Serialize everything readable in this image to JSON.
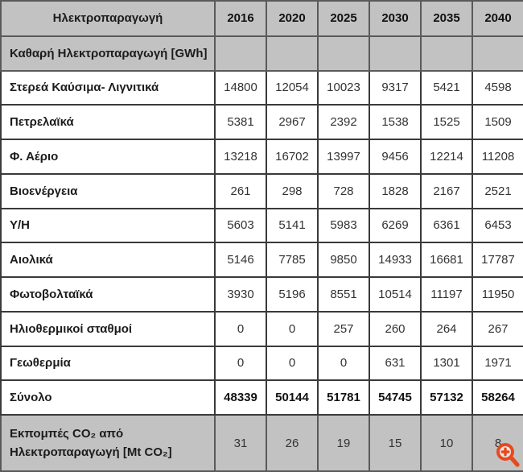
{
  "chart_data": {
    "type": "table",
    "title": "Ηλεκτροπαραγωγή",
    "columns": [
      "2016",
      "2020",
      "2025",
      "2030",
      "2035",
      "2040"
    ],
    "section_header": "Καθαρή Ηλεκτροπαραγωγή [GWh]",
    "rows": [
      {
        "label": "Στερεά Καύσιμα- Λιγνιτικά",
        "values": [
          "14800",
          "12054",
          "10023",
          "9317",
          "5421",
          "4598"
        ]
      },
      {
        "label": "Πετρελαϊκά",
        "values": [
          "5381",
          "2967",
          "2392",
          "1538",
          "1525",
          "1509"
        ]
      },
      {
        "label": "Φ. Αέριο",
        "values": [
          "13218",
          "16702",
          "13997",
          "9456",
          "12214",
          "11208"
        ]
      },
      {
        "label": "Βιοενέργεια",
        "values": [
          "261",
          "298",
          "728",
          "1828",
          "2167",
          "2521"
        ]
      },
      {
        "label": "Υ/Η",
        "values": [
          "5603",
          "5141",
          "5983",
          "6269",
          "6361",
          "6453"
        ]
      },
      {
        "label": "Αιολικά",
        "values": [
          "5146",
          "7785",
          "9850",
          "14933",
          "16681",
          "17787"
        ]
      },
      {
        "label": "Φωτοβολταϊκά",
        "values": [
          "3930",
          "5196",
          "8551",
          "10514",
          "11197",
          "11950"
        ]
      },
      {
        "label": "Ηλιοθερμικοί σταθμοί",
        "values": [
          "0",
          "0",
          "257",
          "260",
          "264",
          "267"
        ]
      },
      {
        "label": "Γεωθερμία",
        "values": [
          "0",
          "0",
          "0",
          "631",
          "1301",
          "1971"
        ]
      }
    ],
    "total_row": {
      "label": "Σύνολο",
      "values": [
        "48339",
        "50144",
        "51781",
        "54745",
        "57132",
        "58264"
      ]
    },
    "co2_row": {
      "label_line1": "Εκπομπές CO₂ από",
      "label_line2": "Ηλεκτροπαραγωγή [Mt CO₂]",
      "values": [
        "31",
        "26",
        "19",
        "15",
        "10",
        "8"
      ]
    },
    "layout_hints": {
      "header_fill": "#c2c2c2",
      "section_fill": "#c2c2c2",
      "co2_row_fill": "#c2c2c2",
      "grid_color": "#3a3a3a",
      "grid": "on"
    }
  },
  "icons": {
    "zoom_in_color": "#e8491d",
    "zoom_in_name": "zoom-in-magnifier-plus"
  }
}
